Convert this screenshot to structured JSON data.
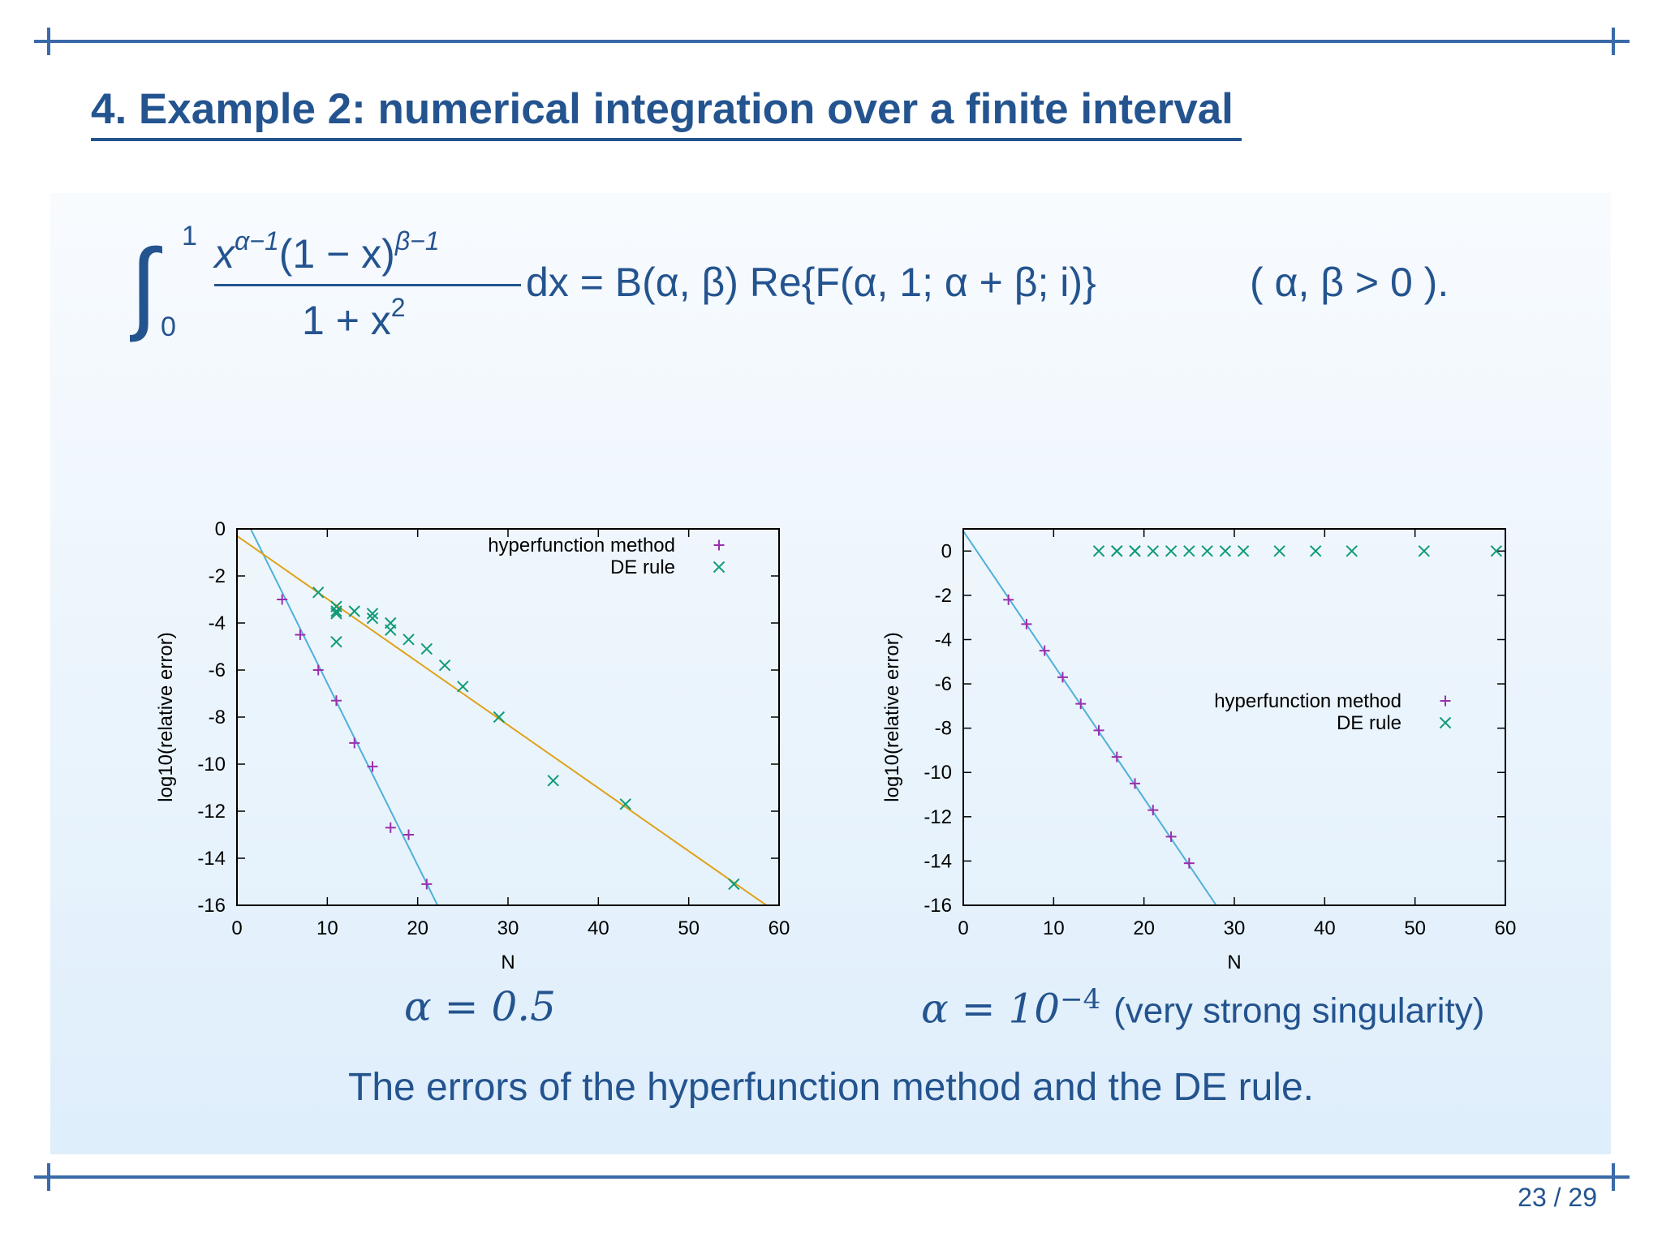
{
  "slide": {
    "title": "4. Example 2: numerical integration over a finite interval",
    "formula": {
      "lower": "0",
      "upper": "1",
      "numerator": "x",
      "num_exp1": "α−1",
      "num_mid": "(1 − x)",
      "num_exp2": "β−1",
      "denominator": "1 + x",
      "den_exp": "2",
      "rhs": "dx = B(α, β) Re{F(α, 1; α + β; i)}",
      "condition": "( α, β > 0 )."
    },
    "caption_left": "α = 0.5",
    "caption_right_math": "α = 10",
    "caption_right_exp": "−4",
    "caption_right_note": "(very strong singularity)",
    "bottom_caption": "The errors of the hyperfunction method and the DE rule.",
    "page_number": "23 / 29"
  },
  "colors": {
    "text_blue": "#24548f",
    "frame_blue": "#3a6aa8",
    "hyperfunction": "#9b2fae",
    "de_rule": "#0f9b73",
    "fit_hyper": "#4fb0d8",
    "fit_de": "#e0a21a"
  },
  "chart_data": [
    {
      "type": "scatter",
      "xlabel": "N",
      "ylabel": "log10(relative error)",
      "xlim": [
        0,
        60
      ],
      "ylim": [
        -16,
        0
      ],
      "xticks": [
        0,
        10,
        20,
        30,
        40,
        50,
        60
      ],
      "yticks": [
        0,
        -2,
        -4,
        -6,
        -8,
        -10,
        -12,
        -14,
        -16
      ],
      "legend_position": "top-right",
      "series": [
        {
          "name": "hyperfunction method",
          "marker": "plus",
          "points": [
            [
              5,
              -3.0
            ],
            [
              7,
              -4.5
            ],
            [
              9,
              -6.0
            ],
            [
              11,
              -7.3
            ],
            [
              13,
              -9.1
            ],
            [
              15,
              -10.1
            ],
            [
              17,
              -12.7
            ],
            [
              19,
              -13.0
            ],
            [
              21,
              -15.1
            ]
          ]
        },
        {
          "name": "DE rule",
          "marker": "cross",
          "points": [
            [
              9,
              -2.7
            ],
            [
              11,
              -3.3
            ],
            [
              11,
              -3.5
            ],
            [
              11,
              -3.6
            ],
            [
              11,
              -4.8
            ],
            [
              13,
              -3.5
            ],
            [
              15,
              -3.6
            ],
            [
              15,
              -3.8
            ],
            [
              17,
              -4.0
            ],
            [
              17,
              -4.3
            ],
            [
              19,
              -4.7
            ],
            [
              21,
              -5.1
            ],
            [
              23,
              -5.8
            ],
            [
              25,
              -6.7
            ],
            [
              29,
              -8.0
            ],
            [
              35,
              -10.7
            ],
            [
              43,
              -11.7
            ],
            [
              55,
              -15.1
            ]
          ]
        }
      ],
      "fit_lines": [
        {
          "series": "hyperfunction method",
          "from": [
            1,
            0.4
          ],
          "to": [
            22.2,
            -16
          ]
        },
        {
          "series": "DE rule",
          "from": [
            0,
            -0.3
          ],
          "to": [
            58.6,
            -16
          ]
        }
      ]
    },
    {
      "type": "scatter",
      "xlabel": "N",
      "ylabel": "log10(relative error)",
      "xlim": [
        0,
        60
      ],
      "ylim": [
        -16,
        1
      ],
      "xticks": [
        0,
        10,
        20,
        30,
        40,
        50,
        60
      ],
      "yticks": [
        0,
        -2,
        -4,
        -6,
        -8,
        -10,
        -12,
        -14,
        -16
      ],
      "legend_position": "middle-right",
      "series": [
        {
          "name": "hyperfunction method",
          "marker": "plus",
          "points": [
            [
              5,
              -2.2
            ],
            [
              7,
              -3.3
            ],
            [
              9,
              -4.5
            ],
            [
              11,
              -5.7
            ],
            [
              13,
              -6.9
            ],
            [
              15,
              -8.1
            ],
            [
              17,
              -9.3
            ],
            [
              19,
              -10.5
            ],
            [
              21,
              -11.7
            ],
            [
              23,
              -12.9
            ],
            [
              25,
              -14.1
            ]
          ]
        },
        {
          "name": "DE rule",
          "marker": "cross",
          "points": [
            [
              15,
              0
            ],
            [
              17,
              0
            ],
            [
              17,
              0
            ],
            [
              19,
              0
            ],
            [
              19,
              0
            ],
            [
              21,
              0
            ],
            [
              23,
              0
            ],
            [
              25,
              0
            ],
            [
              27,
              0
            ],
            [
              29,
              0
            ],
            [
              31,
              0
            ],
            [
              35,
              0
            ],
            [
              39,
              0
            ],
            [
              43,
              0
            ],
            [
              51,
              0
            ],
            [
              59,
              0
            ]
          ]
        }
      ],
      "fit_lines": [
        {
          "series": "hyperfunction method",
          "from": [
            0,
            0.9
          ],
          "to": [
            28,
            -16
          ]
        }
      ]
    }
  ]
}
